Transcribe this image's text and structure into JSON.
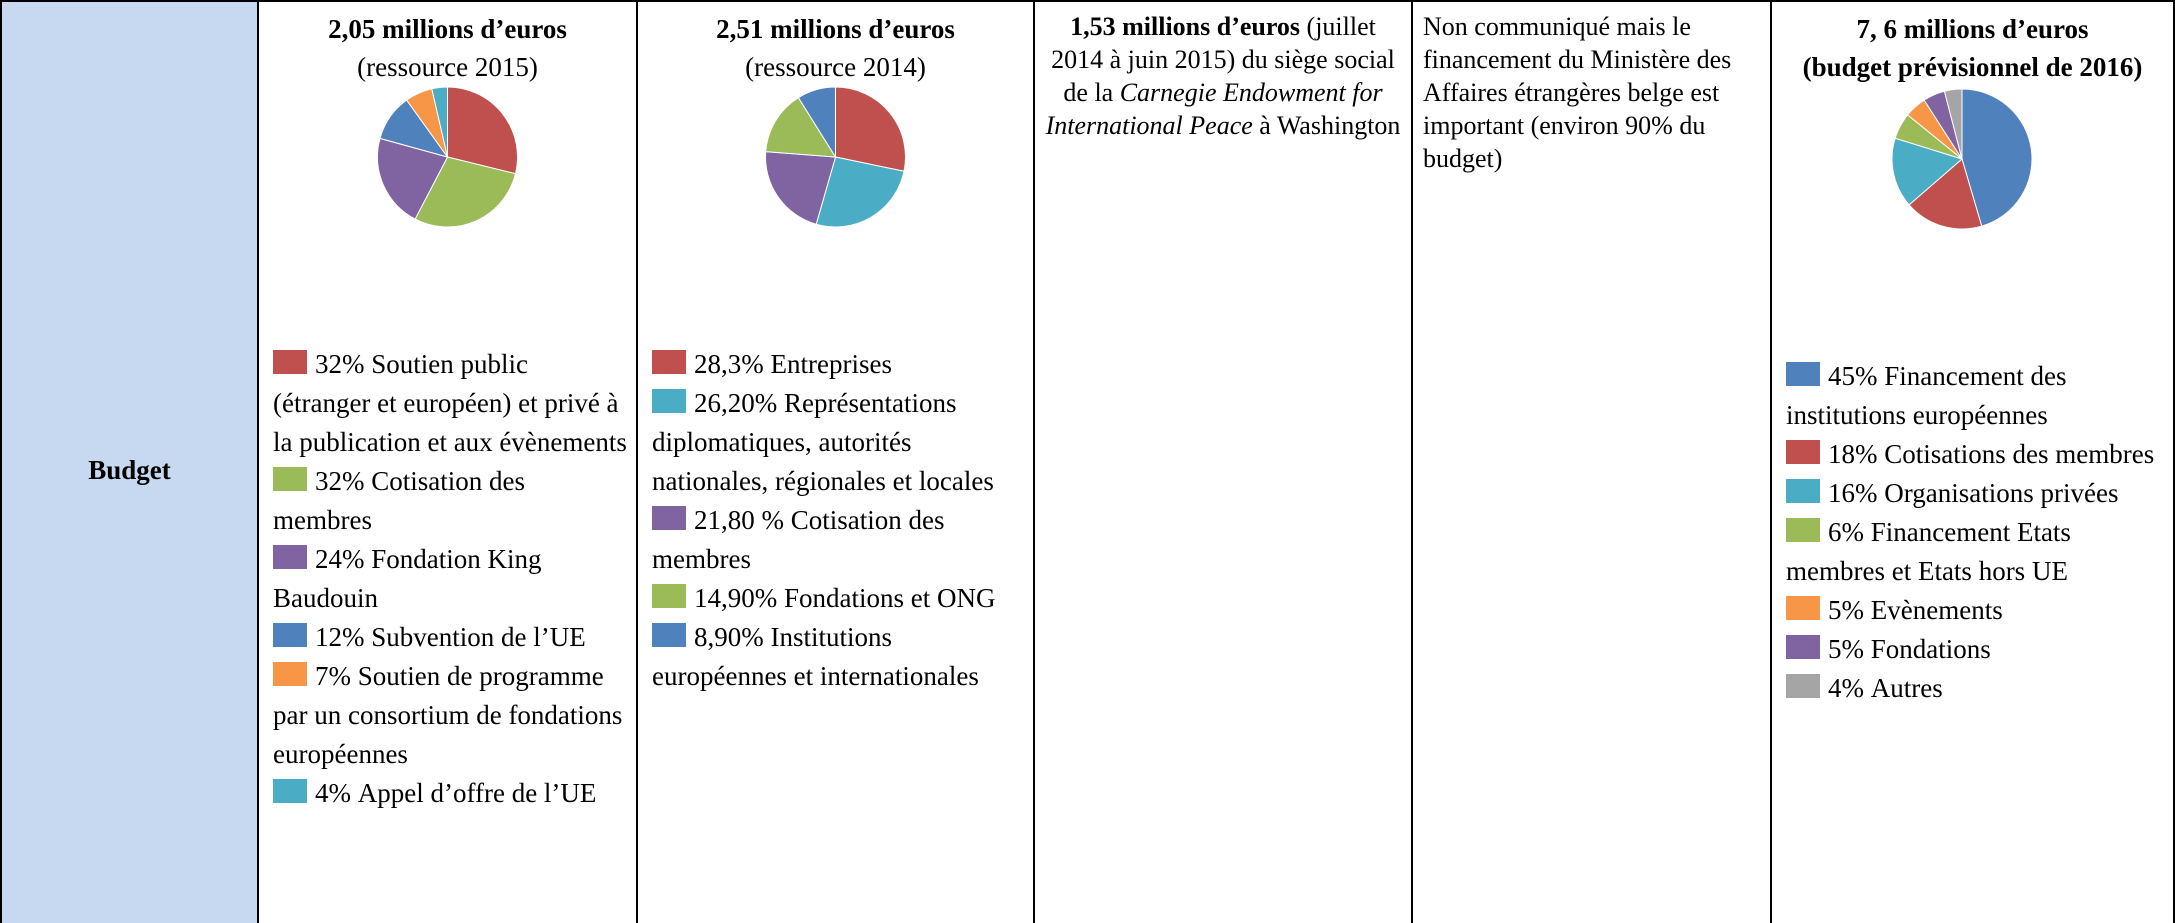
{
  "table": {
    "row_header": "Budget",
    "columns": [
      {
        "title": "2,05 millions d’euros",
        "subtitle": "(ressource 2015)",
        "chart_data": {
          "type": "pie",
          "categories": [
            "Soutien public (étranger et européen) et privé à la publication et aux évènements",
            "Cotisation des membres",
            "Fondation King Baudouin",
            "Subvention de l’UE",
            "Soutien de programme par un consortium de fondations européennes",
            "Appel d’offre de l’UE"
          ],
          "values": [
            32,
            32,
            24,
            12,
            7,
            4
          ],
          "value_labels": [
            "32%",
            "32%",
            "24%",
            "12%",
            "7%",
            "4%"
          ],
          "colors": [
            "#c0504d",
            "#9bbb59",
            "#8064a2",
            "#4f81bd",
            "#f79646",
            "#4bacc6"
          ]
        }
      },
      {
        "title": "2,51 millions d’euros",
        "subtitle": "(ressource 2014)",
        "chart_data": {
          "type": "pie",
          "categories": [
            "Entreprises",
            "Représentations diplomatiques, autorités nationales, régionales et locales",
            "Cotisation des membres",
            "Fondations et ONG",
            "Institutions européennes et internationales"
          ],
          "values": [
            28.3,
            26.2,
            21.8,
            14.9,
            8.9
          ],
          "value_labels": [
            "28,3%",
            "26,20%",
            "21,80 %",
            "14,90%",
            "8,90%"
          ],
          "colors": [
            "#c0504d",
            "#4bacc6",
            "#8064a2",
            "#9bbb59",
            "#4f81bd"
          ]
        }
      },
      {
        "runs": [
          {
            "text": "1,53 millions d’euros",
            "style": "bold"
          },
          {
            "text": " (juillet 2014 à juin 2015) du siège social de la "
          },
          {
            "text": "Carnegie Endowment for International Peace",
            "style": "italic"
          },
          {
            "text": " à Washington"
          }
        ],
        "align": "center"
      },
      {
        "runs": [
          {
            "text": "Non communiqué mais le financement du Ministère des Affaires étrangères belge est important (environ 90% du budget)"
          }
        ],
        "align": "left"
      },
      {
        "title": "7, 6 millions d’euros",
        "subtitle": "(budget prévisionnel de 2016)",
        "subtitle_style": "bold",
        "chart_data": {
          "type": "pie",
          "categories": [
            "Financement des institutions européennes",
            "Cotisations des membres",
            "Organisations privées",
            "Financement Etats membres et Etats hors UE",
            "Evènements",
            "Fondations",
            "Autres"
          ],
          "values": [
            45,
            18,
            16,
            6,
            5,
            5,
            4
          ],
          "value_labels": [
            "45%",
            "18%",
            "16%",
            "6%",
            "5%",
            "5%",
            "4%"
          ],
          "colors": [
            "#4f81bd",
            "#c0504d",
            "#4bacc6",
            "#9bbb59",
            "#f79646",
            "#8064a2",
            "#a5a5a5"
          ]
        }
      }
    ]
  }
}
